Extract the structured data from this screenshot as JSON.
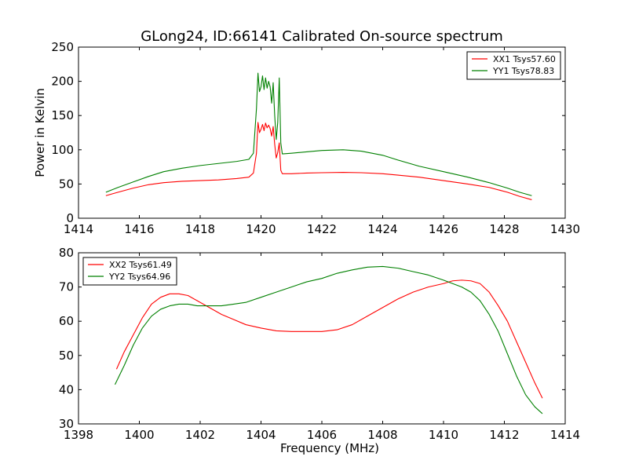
{
  "figure_title": "GLong24, ID:66141 Calibrated On-source spectrum",
  "colors": {
    "red": "#ff0000",
    "green": "#008000",
    "axis": "#000000",
    "background": "#ffffff"
  },
  "chart_data": [
    {
      "type": "line",
      "title": "GLong24, ID:66141 Calibrated On-source spectrum",
      "xlabel": "",
      "ylabel": "Power in Kelvin",
      "xlim": [
        1414,
        1430
      ],
      "ylim": [
        0,
        250
      ],
      "xticks": [
        "1414",
        "1416",
        "1418",
        "1420",
        "1422",
        "1424",
        "1426",
        "1428",
        "1430"
      ],
      "yticks": [
        "0",
        "50",
        "100",
        "150",
        "200",
        "250"
      ],
      "xtick_values": [
        1414,
        1416,
        1418,
        1420,
        1422,
        1424,
        1426,
        1428,
        1430
      ],
      "ytick_values": [
        0,
        50,
        100,
        150,
        200,
        250
      ],
      "grid": false,
      "legend_position": "top-right",
      "series": [
        {
          "name": "XX1 Tsys57.60",
          "color": "#ff0000",
          "x": [
            1414.9,
            1415.3,
            1415.8,
            1416.3,
            1416.8,
            1417.4,
            1418.0,
            1418.6,
            1419.2,
            1419.6,
            1419.75,
            1419.85,
            1419.9,
            1419.95,
            1420.0,
            1420.05,
            1420.1,
            1420.15,
            1420.2,
            1420.25,
            1420.3,
            1420.35,
            1420.4,
            1420.45,
            1420.5,
            1420.55,
            1420.6,
            1420.65,
            1420.7,
            1421.0,
            1421.5,
            1422.0,
            1422.7,
            1423.3,
            1424.0,
            1424.5,
            1425.2,
            1426.0,
            1426.8,
            1427.5,
            1428.1,
            1428.5,
            1428.9
          ],
          "y": [
            33,
            38,
            44,
            49,
            52,
            54,
            55,
            56,
            58,
            60,
            66,
            95,
            140,
            125,
            130,
            137,
            128,
            139,
            132,
            136,
            131,
            120,
            134,
            108,
            88,
            96,
            110,
            70,
            65,
            65,
            66,
            66.5,
            67,
            66.5,
            65,
            63,
            60,
            55,
            50,
            45,
            38,
            32,
            27
          ]
        },
        {
          "name": "YY1 Tsys78.83",
          "color": "#008000",
          "x": [
            1414.9,
            1415.3,
            1415.8,
            1416.3,
            1416.8,
            1417.4,
            1418.0,
            1418.6,
            1419.2,
            1419.6,
            1419.75,
            1419.85,
            1419.9,
            1419.95,
            1420.0,
            1420.05,
            1420.1,
            1420.15,
            1420.2,
            1420.25,
            1420.3,
            1420.35,
            1420.4,
            1420.45,
            1420.5,
            1420.55,
            1420.6,
            1420.65,
            1420.7,
            1421.0,
            1421.5,
            1422.0,
            1422.7,
            1423.3,
            1424.0,
            1424.5,
            1425.2,
            1426.0,
            1426.8,
            1427.5,
            1428.1,
            1428.5,
            1428.9
          ],
          "y": [
            38,
            45,
            53,
            61,
            68,
            73,
            77,
            80,
            83,
            86,
            95,
            160,
            212,
            185,
            192,
            208,
            188,
            205,
            190,
            200,
            192,
            168,
            198,
            150,
            115,
            140,
            205,
            110,
            94,
            95,
            97,
            99,
            100,
            98,
            92,
            85,
            76,
            68,
            60,
            52,
            44,
            38,
            33
          ]
        }
      ]
    },
    {
      "type": "line",
      "title": "",
      "xlabel": "Frequency (MHz)",
      "ylabel": "",
      "xlim": [
        1398,
        1414
      ],
      "ylim": [
        30,
        80
      ],
      "xticks": [
        "1398",
        "1400",
        "1402",
        "1404",
        "1406",
        "1408",
        "1410",
        "1412",
        "1414"
      ],
      "yticks": [
        "30",
        "40",
        "50",
        "60",
        "70",
        "80"
      ],
      "xtick_values": [
        1398,
        1400,
        1402,
        1404,
        1406,
        1408,
        1410,
        1412,
        1414
      ],
      "ytick_values": [
        30,
        40,
        50,
        60,
        70,
        80
      ],
      "grid": false,
      "legend_position": "top-left",
      "series": [
        {
          "name": "XX2 Tsys61.49",
          "color": "#ff0000",
          "x": [
            1399.25,
            1399.5,
            1399.8,
            1400.1,
            1400.4,
            1400.7,
            1401.0,
            1401.3,
            1401.6,
            1401.9,
            1402.3,
            1402.7,
            1403.1,
            1403.5,
            1404.0,
            1404.5,
            1405.0,
            1405.5,
            1406.0,
            1406.5,
            1407.0,
            1407.5,
            1408.0,
            1408.5,
            1409.0,
            1409.5,
            1410.0,
            1410.3,
            1410.6,
            1410.9,
            1411.2,
            1411.5,
            1411.8,
            1412.1,
            1412.4,
            1412.7,
            1413.0,
            1413.25
          ],
          "y": [
            46,
            51,
            56,
            61,
            65,
            67,
            68,
            68,
            67.5,
            66,
            64,
            62,
            60.5,
            59,
            58,
            57.2,
            57,
            57,
            57,
            57.5,
            59,
            61.5,
            64,
            66.5,
            68.5,
            70,
            71,
            71.8,
            72,
            71.8,
            71,
            68.5,
            64.5,
            60,
            54,
            48,
            42,
            37.5
          ]
        },
        {
          "name": "YY2 Tsys64.96",
          "color": "#008000",
          "x": [
            1399.2,
            1399.5,
            1399.8,
            1400.1,
            1400.4,
            1400.7,
            1401.0,
            1401.3,
            1401.6,
            1401.9,
            1402.3,
            1402.7,
            1403.1,
            1403.5,
            1404.0,
            1404.5,
            1405.0,
            1405.5,
            1406.0,
            1406.5,
            1407.0,
            1407.5,
            1408.0,
            1408.5,
            1409.0,
            1409.5,
            1410.0,
            1410.3,
            1410.6,
            1410.9,
            1411.2,
            1411.5,
            1411.8,
            1412.1,
            1412.4,
            1412.7,
            1413.0,
            1413.25
          ],
          "y": [
            41.5,
            47,
            53,
            58,
            61.5,
            63.5,
            64.5,
            65,
            65,
            64.5,
            64.5,
            64.5,
            65,
            65.5,
            67,
            68.5,
            70,
            71.5,
            72.5,
            74,
            75,
            75.8,
            76,
            75.5,
            74.5,
            73.5,
            72,
            71,
            70,
            68.5,
            66,
            62,
            57,
            50.5,
            44,
            38.5,
            35,
            33
          ]
        }
      ]
    }
  ]
}
